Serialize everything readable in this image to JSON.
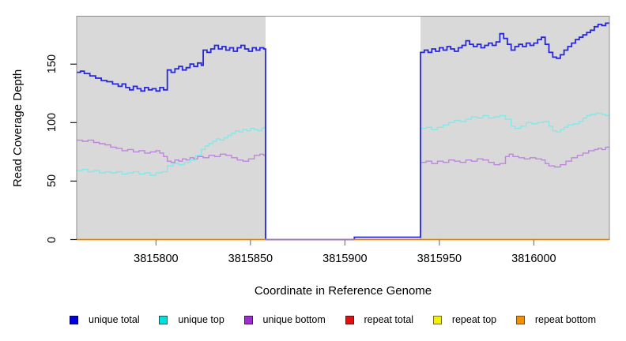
{
  "chart_data": {
    "type": "line",
    "subtype": "step",
    "title": "",
    "xlabel": "Coordinate in Reference Genome",
    "ylabel": "Read Coverage Depth",
    "xlim": [
      3815758,
      3816040
    ],
    "ylim": [
      0,
      191
    ],
    "grid": false,
    "legend_position": "bottom",
    "panel_background": "#d9d9d9",
    "panel_border": "#8d8d8d",
    "gap_background": "#ffffff",
    "shaded_regions": [
      [
        3815758,
        3815858
      ],
      [
        3815940,
        3816040
      ]
    ],
    "x_ticks": [
      {
        "value": 3815800,
        "label": "3815800"
      },
      {
        "value": 3815850,
        "label": "3815850"
      },
      {
        "value": 3815900,
        "label": "3815900"
      },
      {
        "value": 3815950,
        "label": "3815950"
      },
      {
        "value": 3816000,
        "label": "3816000"
      }
    ],
    "y_ticks": [
      {
        "value": 0,
        "label": "0"
      },
      {
        "value": 50,
        "label": "50"
      },
      {
        "value": 100,
        "label": "100"
      },
      {
        "value": 150,
        "label": "150"
      }
    ],
    "series": [
      {
        "name": "unique-bottom",
        "label": "unique bottom",
        "line_color": "#bd86dd",
        "legend_fill": "#9b30cf",
        "legend_border": "#4a1166",
        "in_legend": true,
        "legend_order": 2,
        "draw_order": 1,
        "line_width": 1.4,
        "points": [
          [
            3815758,
            85
          ],
          [
            3815761,
            84
          ],
          [
            3815764,
            85
          ],
          [
            3815767,
            83
          ],
          [
            3815770,
            82
          ],
          [
            3815773,
            81
          ],
          [
            3815776,
            79
          ],
          [
            3815779,
            78
          ],
          [
            3815782,
            76
          ],
          [
            3815785,
            77
          ],
          [
            3815788,
            75
          ],
          [
            3815791,
            76
          ],
          [
            3815794,
            74
          ],
          [
            3815797,
            75
          ],
          [
            3815800,
            76
          ],
          [
            3815802,
            74
          ],
          [
            3815804,
            71
          ],
          [
            3815806,
            67
          ],
          [
            3815808,
            66
          ],
          [
            3815810,
            68
          ],
          [
            3815812,
            67
          ],
          [
            3815814,
            69
          ],
          [
            3815816,
            68
          ],
          [
            3815818,
            70
          ],
          [
            3815820,
            69
          ],
          [
            3815822,
            71
          ],
          [
            3815825,
            70
          ],
          [
            3815828,
            72
          ],
          [
            3815831,
            71
          ],
          [
            3815834,
            73
          ],
          [
            3815837,
            72
          ],
          [
            3815840,
            70
          ],
          [
            3815843,
            68
          ],
          [
            3815846,
            67
          ],
          [
            3815849,
            69
          ],
          [
            3815852,
            72
          ],
          [
            3815855,
            73
          ],
          [
            3815857,
            72
          ],
          [
            3815858,
            0
          ],
          [
            3815940,
            66
          ],
          [
            3815943,
            67
          ],
          [
            3815946,
            65
          ],
          [
            3815949,
            67
          ],
          [
            3815952,
            66
          ],
          [
            3815955,
            68
          ],
          [
            3815958,
            67
          ],
          [
            3815961,
            66
          ],
          [
            3815964,
            68
          ],
          [
            3815967,
            67
          ],
          [
            3815970,
            69
          ],
          [
            3815973,
            68
          ],
          [
            3815976,
            66
          ],
          [
            3815979,
            64
          ],
          [
            3815982,
            65
          ],
          [
            3815985,
            71
          ],
          [
            3815987,
            73
          ],
          [
            3815989,
            71
          ],
          [
            3815992,
            70
          ],
          [
            3815995,
            69
          ],
          [
            3815998,
            70
          ],
          [
            3816001,
            69
          ],
          [
            3816004,
            68
          ],
          [
            3816006,
            65
          ],
          [
            3816008,
            63
          ],
          [
            3816011,
            62
          ],
          [
            3816014,
            64
          ],
          [
            3816017,
            67
          ],
          [
            3816020,
            70
          ],
          [
            3816023,
            72
          ],
          [
            3816026,
            74
          ],
          [
            3816029,
            76
          ],
          [
            3816032,
            77
          ],
          [
            3816034,
            78
          ],
          [
            3816036,
            77
          ],
          [
            3816038,
            79
          ],
          [
            3816040,
            79
          ]
        ]
      },
      {
        "name": "unique-top",
        "label": "unique top",
        "line_color": "#84e8e8",
        "legend_fill": "#00e0e0",
        "legend_border": "#0a5e5e",
        "in_legend": true,
        "legend_order": 1,
        "draw_order": 2,
        "line_width": 1.4,
        "points": [
          [
            3815758,
            59
          ],
          [
            3815761,
            60
          ],
          [
            3815764,
            58
          ],
          [
            3815767,
            59
          ],
          [
            3815770,
            57
          ],
          [
            3815773,
            58
          ],
          [
            3815776,
            57
          ],
          [
            3815779,
            58
          ],
          [
            3815782,
            56
          ],
          [
            3815785,
            57
          ],
          [
            3815788,
            58
          ],
          [
            3815791,
            56
          ],
          [
            3815794,
            57
          ],
          [
            3815797,
            55
          ],
          [
            3815800,
            57
          ],
          [
            3815803,
            58
          ],
          [
            3815806,
            63
          ],
          [
            3815809,
            65
          ],
          [
            3815812,
            64
          ],
          [
            3815815,
            66
          ],
          [
            3815818,
            68
          ],
          [
            3815821,
            72
          ],
          [
            3815824,
            77
          ],
          [
            3815826,
            80
          ],
          [
            3815828,
            82
          ],
          [
            3815830,
            84
          ],
          [
            3815832,
            86
          ],
          [
            3815834,
            85
          ],
          [
            3815836,
            87
          ],
          [
            3815838,
            89
          ],
          [
            3815840,
            91
          ],
          [
            3815842,
            93
          ],
          [
            3815844,
            92
          ],
          [
            3815846,
            94
          ],
          [
            3815848,
            93
          ],
          [
            3815850,
            95
          ],
          [
            3815852,
            94
          ],
          [
            3815854,
            93
          ],
          [
            3815856,
            95
          ],
          [
            3815857,
            96
          ],
          [
            3815858,
            0
          ],
          [
            3815940,
            95
          ],
          [
            3815943,
            96
          ],
          [
            3815946,
            94
          ],
          [
            3815949,
            96
          ],
          [
            3815952,
            98
          ],
          [
            3815955,
            100
          ],
          [
            3815958,
            102
          ],
          [
            3815961,
            101
          ],
          [
            3815964,
            103
          ],
          [
            3815967,
            105
          ],
          [
            3815970,
            104
          ],
          [
            3815973,
            106
          ],
          [
            3815976,
            104
          ],
          [
            3815979,
            105
          ],
          [
            3815982,
            106
          ],
          [
            3815985,
            103
          ],
          [
            3815988,
            97
          ],
          [
            3815990,
            95
          ],
          [
            3815993,
            97
          ],
          [
            3815996,
            100
          ],
          [
            3815999,
            99
          ],
          [
            3816002,
            100
          ],
          [
            3816005,
            101
          ],
          [
            3816008,
            97
          ],
          [
            3816010,
            93
          ],
          [
            3816012,
            92
          ],
          [
            3816014,
            94
          ],
          [
            3816016,
            96
          ],
          [
            3816018,
            98
          ],
          [
            3816021,
            99
          ],
          [
            3816024,
            101
          ],
          [
            3816026,
            104
          ],
          [
            3816028,
            106
          ],
          [
            3816030,
            107
          ],
          [
            3816033,
            108
          ],
          [
            3816036,
            107
          ],
          [
            3816038,
            106
          ],
          [
            3816040,
            107
          ]
        ]
      },
      {
        "name": "unique-total",
        "label": "unique total",
        "line_color": "#2727de",
        "legend_fill": "#0000e0",
        "legend_border": "#000070",
        "in_legend": true,
        "legend_order": 0,
        "draw_order": 3,
        "line_width": 1.8,
        "points": [
          [
            3815758,
            143
          ],
          [
            3815760,
            144
          ],
          [
            3815762,
            142
          ],
          [
            3815765,
            140
          ],
          [
            3815768,
            138
          ],
          [
            3815771,
            136
          ],
          [
            3815774,
            135
          ],
          [
            3815777,
            133
          ],
          [
            3815780,
            131
          ],
          [
            3815782,
            133
          ],
          [
            3815784,
            130
          ],
          [
            3815786,
            128
          ],
          [
            3815788,
            131
          ],
          [
            3815790,
            129
          ],
          [
            3815792,
            127
          ],
          [
            3815794,
            130
          ],
          [
            3815796,
            128
          ],
          [
            3815798,
            129
          ],
          [
            3815800,
            127
          ],
          [
            3815802,
            130
          ],
          [
            3815804,
            128
          ],
          [
            3815806,
            145
          ],
          [
            3815808,
            143
          ],
          [
            3815810,
            146
          ],
          [
            3815812,
            148
          ],
          [
            3815814,
            145
          ],
          [
            3815816,
            147
          ],
          [
            3815818,
            150
          ],
          [
            3815820,
            148
          ],
          [
            3815822,
            151
          ],
          [
            3815824,
            149
          ],
          [
            3815825,
            162
          ],
          [
            3815827,
            160
          ],
          [
            3815829,
            163
          ],
          [
            3815831,
            166
          ],
          [
            3815833,
            163
          ],
          [
            3815835,
            165
          ],
          [
            3815837,
            162
          ],
          [
            3815839,
            164
          ],
          [
            3815841,
            161
          ],
          [
            3815843,
            164
          ],
          [
            3815845,
            166
          ],
          [
            3815847,
            163
          ],
          [
            3815849,
            161
          ],
          [
            3815851,
            164
          ],
          [
            3815853,
            162
          ],
          [
            3815855,
            164
          ],
          [
            3815857,
            163
          ],
          [
            3815858,
            0
          ],
          [
            3815905,
            2
          ],
          [
            3815940,
            160
          ],
          [
            3815942,
            162
          ],
          [
            3815944,
            160
          ],
          [
            3815946,
            163
          ],
          [
            3815948,
            161
          ],
          [
            3815950,
            164
          ],
          [
            3815952,
            162
          ],
          [
            3815954,
            165
          ],
          [
            3815956,
            163
          ],
          [
            3815958,
            161
          ],
          [
            3815960,
            164
          ],
          [
            3815962,
            166
          ],
          [
            3815964,
            170
          ],
          [
            3815966,
            167
          ],
          [
            3815968,
            165
          ],
          [
            3815970,
            167
          ],
          [
            3815972,
            164
          ],
          [
            3815974,
            166
          ],
          [
            3815976,
            168
          ],
          [
            3815978,
            166
          ],
          [
            3815980,
            169
          ],
          [
            3815982,
            176
          ],
          [
            3815984,
            172
          ],
          [
            3815986,
            167
          ],
          [
            3815988,
            162
          ],
          [
            3815990,
            165
          ],
          [
            3815992,
            167
          ],
          [
            3815994,
            165
          ],
          [
            3815996,
            168
          ],
          [
            3815998,
            166
          ],
          [
            3816000,
            168
          ],
          [
            3816002,
            171
          ],
          [
            3816004,
            173
          ],
          [
            3816006,
            167
          ],
          [
            3816008,
            160
          ],
          [
            3816010,
            156
          ],
          [
            3816012,
            155
          ],
          [
            3816014,
            158
          ],
          [
            3816016,
            162
          ],
          [
            3816018,
            165
          ],
          [
            3816020,
            168
          ],
          [
            3816022,
            171
          ],
          [
            3816024,
            173
          ],
          [
            3816026,
            175
          ],
          [
            3816028,
            177
          ],
          [
            3816030,
            179
          ],
          [
            3816032,
            182
          ],
          [
            3816034,
            184
          ],
          [
            3816036,
            183
          ],
          [
            3816038,
            185
          ],
          [
            3816040,
            186
          ]
        ]
      },
      {
        "name": "repeat-total",
        "label": "repeat total",
        "line_color": "#e01010",
        "legend_fill": "#e01010",
        "legend_border": "#6b0f0f",
        "in_legend": true,
        "legend_order": 3,
        "draw_order": 4,
        "line_width": 1.6,
        "points": [
          [
            3815758,
            0
          ],
          [
            3816040,
            0
          ]
        ]
      },
      {
        "name": "repeat-top",
        "label": "repeat top",
        "line_color": "#f2f200",
        "legend_fill": "#f2f200",
        "legend_border": "#6f6f12",
        "in_legend": true,
        "legend_order": 4,
        "draw_order": 5,
        "line_width": 1.6,
        "points": [
          [
            3815758,
            0
          ],
          [
            3816040,
            0
          ]
        ]
      },
      {
        "name": "repeat-bottom",
        "label": "repeat bottom",
        "line_color": "#ff9c1e",
        "legend_fill": "#f29100",
        "legend_border": "#7a4a08",
        "in_legend": true,
        "legend_order": 5,
        "draw_order": 6,
        "line_width": 1.8,
        "points": [
          [
            3815758,
            0
          ],
          [
            3816040,
            0
          ]
        ]
      },
      {
        "name": "gap-zero-overlay",
        "label": "",
        "line_color": "#7d75e6",
        "legend_fill": "",
        "legend_border": "",
        "in_legend": false,
        "legend_order": 99,
        "draw_order": 7,
        "line_width": 1.8,
        "points": [
          [
            3815858,
            0
          ],
          [
            3815905,
            0
          ]
        ]
      }
    ]
  }
}
